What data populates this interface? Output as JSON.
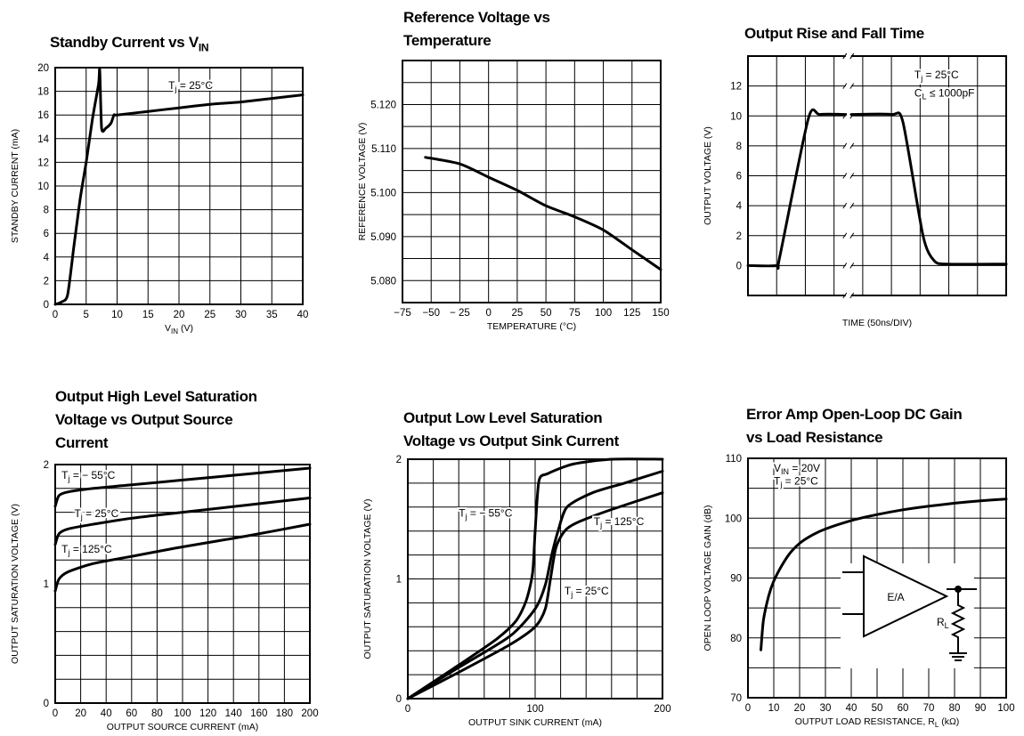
{
  "chart_data": [
    {
      "id": "c1",
      "type": "line",
      "title": "Standby Current vs V_IN",
      "title_lines": [
        {
          "main": "Standby Current vs V",
          "sub": "IN"
        }
      ],
      "xlabel": {
        "main": "V",
        "sub": "IN",
        "post": " (V)"
      },
      "ylabel": "STANDBY CURRENT (mA)",
      "xlim": [
        0,
        40
      ],
      "ylim": [
        0,
        20
      ],
      "xticks": [
        0,
        5,
        10,
        15,
        20,
        25,
        30,
        35,
        40
      ],
      "yticks": [
        0,
        2,
        4,
        6,
        8,
        10,
        12,
        14,
        16,
        18,
        20
      ],
      "xgrid": [
        0,
        5,
        10,
        15,
        20,
        25,
        30,
        35,
        40
      ],
      "ygrid": [
        0,
        2,
        4,
        6,
        8,
        10,
        12,
        14,
        16,
        18,
        20
      ],
      "grid": true,
      "series": [
        {
          "x": [
            0,
            1,
            2,
            3,
            4,
            5,
            6,
            7,
            7.2,
            7.5,
            8.2,
            9,
            9.5,
            10,
            15,
            20,
            25,
            30,
            35,
            40
          ],
          "y": [
            0,
            0.2,
            0.8,
            4.8,
            8.8,
            12.0,
            15.6,
            18.6,
            19.8,
            14.9,
            14.9,
            15.3,
            16.0,
            16.0,
            16.3,
            16.6,
            16.9,
            17.1,
            17.4,
            17.7
          ]
        }
      ],
      "annotations": [
        {
          "label": [
            {
              "t": "T"
            },
            {
              "t": "j",
              "sub": true
            },
            {
              "t": " = 25°C"
            }
          ],
          "x": 18.3,
          "y": 18.2
        }
      ]
    },
    {
      "id": "c2",
      "type": "line",
      "title": "Reference Voltage vs Temperature",
      "title_lines": [
        {
          "main": "Reference Voltage vs"
        },
        {
          "main": "Temperature"
        }
      ],
      "xlabel": {
        "main": "TEMPERATURE (°C)"
      },
      "ylabel": "REFERENCE VOLTAGE (V)",
      "xlim": [
        -75,
        150
      ],
      "ylim": [
        5.075,
        5.13
      ],
      "xticks": [
        -75,
        -50,
        -25,
        0,
        25,
        50,
        75,
        100,
        125,
        150
      ],
      "xtick_labels": [
        "−75",
        "−50",
        "− 25",
        "0",
        "25",
        "50",
        "75",
        "100",
        "125",
        "150"
      ],
      "yticks": [
        5.08,
        5.09,
        5.1,
        5.11,
        5.12
      ],
      "ytick_labels": [
        "5.080",
        "5.090",
        "5.100",
        "5.110",
        "5.120"
      ],
      "xgrid": [
        -75,
        -50,
        -25,
        0,
        25,
        50,
        75,
        100,
        125,
        150
      ],
      "ygrid": [
        5.075,
        5.08,
        5.085,
        5.09,
        5.095,
        5.1,
        5.105,
        5.11,
        5.115,
        5.12,
        5.125,
        5.13
      ],
      "grid": true,
      "series": [
        {
          "x": [
            -55,
            -25,
            0,
            25,
            50,
            75,
            100,
            125,
            150
          ],
          "y": [
            5.108,
            5.1065,
            5.1035,
            5.1005,
            5.097,
            5.0945,
            5.0915,
            5.087,
            5.0825
          ]
        }
      ],
      "annotations": []
    },
    {
      "id": "c3",
      "type": "line",
      "title": "Output Rise and Fall Time",
      "title_lines": [
        {
          "main": "Output Rise and Fall Time"
        }
      ],
      "xlabel": {
        "main": "TIME (50ns/DIV)"
      },
      "ylabel": "OUTPUT VOLTAGE (V)",
      "xlim": [
        0,
        9
      ],
      "ylim": [
        -2,
        14
      ],
      "xticks": [],
      "yticks": [
        0,
        2,
        4,
        6,
        8,
        10,
        12
      ],
      "xgrid": [
        0,
        1,
        2,
        3,
        4,
        5,
        6,
        7,
        8,
        9
      ],
      "ygrid": [
        -2,
        0,
        2,
        4,
        6,
        8,
        10,
        12,
        14
      ],
      "grid": true,
      "break_x": 3.5,
      "series": [
        {
          "x": [
            0,
            1.0,
            1.1,
            2.1,
            2.5,
            3.4
          ],
          "y": [
            0,
            0,
            0.5,
            9.8,
            10.1,
            10.1
          ]
        },
        {
          "x": [
            3.6,
            5.0,
            5.4,
            6.1,
            6.5,
            7.0,
            9.0
          ],
          "y": [
            10.1,
            10.1,
            9.6,
            2.0,
            0.3,
            0.1,
            0.1
          ]
        }
      ],
      "annotations": [
        {
          "label": [
            {
              "t": "T"
            },
            {
              "t": "j",
              "sub": true
            },
            {
              "t": " = 25°C"
            }
          ],
          "x": 5.8,
          "y": 12.5
        },
        {
          "label": [
            {
              "t": "C"
            },
            {
              "t": "L",
              "sub": true
            },
            {
              "t": " ≤ 1000pF"
            }
          ],
          "x": 5.8,
          "y": 11.3
        }
      ]
    },
    {
      "id": "c4",
      "type": "line",
      "title": "Output High Level Saturation Voltage vs Output Source Current",
      "title_lines": [
        {
          "main": "Output High Level Saturation"
        },
        {
          "main": "Voltage vs Output Source"
        },
        {
          "main": "Current"
        }
      ],
      "xlabel": {
        "main": "OUTPUT SOURCE CURRENT (mA)"
      },
      "ylabel": "OUTPUT SATURATION VOLTAGE (V)",
      "xlim": [
        0,
        200
      ],
      "ylim": [
        0,
        2
      ],
      "xticks": [
        0,
        20,
        40,
        60,
        80,
        100,
        120,
        140,
        160,
        180,
        200
      ],
      "yticks": [
        0,
        1,
        2
      ],
      "xgrid": [
        0,
        20,
        40,
        60,
        80,
        100,
        120,
        140,
        160,
        180,
        200
      ],
      "ygrid": [
        0,
        0.2,
        0.4,
        0.6,
        0.8,
        1.0,
        1.2,
        1.4,
        1.6,
        1.8,
        2.0
      ],
      "grid": true,
      "series": [
        {
          "name": "T_j = −55°C",
          "x": [
            0,
            3,
            10,
            30,
            60,
            100,
            150,
            200
          ],
          "y": [
            1.65,
            1.74,
            1.77,
            1.8,
            1.83,
            1.87,
            1.92,
            1.97
          ]
        },
        {
          "name": "T_j = 25°C",
          "x": [
            0,
            3,
            10,
            30,
            60,
            100,
            150,
            200
          ],
          "y": [
            1.33,
            1.42,
            1.46,
            1.5,
            1.55,
            1.6,
            1.66,
            1.72
          ]
        },
        {
          "name": "T_j = 125°C",
          "x": [
            0,
            3,
            10,
            30,
            60,
            100,
            150,
            200
          ],
          "y": [
            0.94,
            1.04,
            1.1,
            1.17,
            1.23,
            1.31,
            1.4,
            1.5
          ]
        }
      ],
      "annotations": [
        {
          "label": [
            {
              "t": "T"
            },
            {
              "t": "j",
              "sub": true
            },
            {
              "t": " = − 55°C"
            }
          ],
          "x": 5,
          "y": 1.88
        },
        {
          "label": [
            {
              "t": "T"
            },
            {
              "t": "j",
              "sub": true
            },
            {
              "t": " = 25°C"
            }
          ],
          "x": 15,
          "y": 1.56
        },
        {
          "label": [
            {
              "t": "T"
            },
            {
              "t": "j",
              "sub": true
            },
            {
              "t": " = 125°C"
            }
          ],
          "x": 5,
          "y": 1.26
        }
      ]
    },
    {
      "id": "c5",
      "type": "line",
      "title": "Output Low Level Saturation Voltage vs Output Sink Current",
      "title_lines": [
        {
          "main": "Output Low Level Saturation"
        },
        {
          "main": "Voltage vs Output Sink Current"
        }
      ],
      "xlabel": {
        "main": "OUTPUT SINK CURRENT (mA)"
      },
      "ylabel": "OUTPUT SATURATION VOLTAGE (V)",
      "xlim": [
        0,
        200
      ],
      "ylim": [
        0,
        2
      ],
      "xticks": [
        0,
        100,
        200
      ],
      "yticks": [
        0,
        1,
        2
      ],
      "xgrid": [
        0,
        20,
        40,
        60,
        80,
        100,
        120,
        140,
        160,
        180,
        200
      ],
      "ygrid": [
        0,
        0.2,
        0.4,
        0.6,
        0.8,
        1.0,
        1.2,
        1.4,
        1.6,
        1.8,
        2.0
      ],
      "grid": true,
      "series": [
        {
          "name": "T_j = −55°C",
          "x": [
            0,
            40,
            70,
            85,
            93,
            98,
            100,
            103,
            110,
            130,
            160,
            200
          ],
          "y": [
            0,
            0.28,
            0.5,
            0.65,
            0.82,
            1.05,
            1.4,
            1.82,
            1.88,
            1.96,
            2.0,
            2.0
          ]
        },
        {
          "name": "T_j = 25°C",
          "x": [
            0,
            40,
            80,
            100,
            108,
            113,
            118,
            125,
            145,
            170,
            200
          ],
          "y": [
            0,
            0.26,
            0.52,
            0.75,
            0.95,
            1.2,
            1.4,
            1.6,
            1.72,
            1.8,
            1.9
          ]
        },
        {
          "name": "T_j = 125°C",
          "x": [
            0,
            40,
            80,
            100,
            108,
            112,
            116,
            120,
            125,
            135,
            160,
            200
          ],
          "y": [
            0,
            0.22,
            0.45,
            0.6,
            0.75,
            1.0,
            1.25,
            1.35,
            1.42,
            1.48,
            1.58,
            1.72
          ]
        }
      ],
      "annotations": [
        {
          "label": [
            {
              "t": "T"
            },
            {
              "t": "j",
              "sub": true
            },
            {
              "t": " = − 55°C"
            }
          ],
          "x": 40,
          "y": 1.52
        },
        {
          "label": [
            {
              "t": "T"
            },
            {
              "t": "j",
              "sub": true
            },
            {
              "t": " = 125°C"
            }
          ],
          "x": 146,
          "y": 1.45
        },
        {
          "label": [
            {
              "t": "T"
            },
            {
              "t": "j",
              "sub": true
            },
            {
              "t": " = 25°C"
            }
          ],
          "x": 123,
          "y": 0.87
        }
      ]
    },
    {
      "id": "c6",
      "type": "line",
      "title": "Error Amp Open-Loop DC Gain vs Load Resistance",
      "title_lines": [
        {
          "main": "Error Amp Open-Loop DC Gain"
        },
        {
          "main": "vs Load Resistance"
        }
      ],
      "xlabel": {
        "main": "OUTPUT LOAD RESISTANCE, R",
        "sub": "L",
        "post": " (kΩ)"
      },
      "ylabel": "OPEN LOOP VOLTAGE GAIN (dB)",
      "xlim": [
        0,
        100
      ],
      "ylim": [
        70,
        110
      ],
      "xticks": [
        0,
        10,
        20,
        30,
        40,
        50,
        60,
        70,
        80,
        90,
        100
      ],
      "yticks": [
        70,
        80,
        90,
        100,
        110
      ],
      "xgrid": [
        0,
        10,
        20,
        30,
        40,
        50,
        60,
        70,
        80,
        90,
        100
      ],
      "ygrid": [
        70,
        75,
        80,
        85,
        90,
        95,
        100,
        105,
        110
      ],
      "grid": true,
      "series": [
        {
          "x": [
            5,
            6,
            8,
            10,
            13,
            16,
            20,
            25,
            30,
            40,
            50,
            60,
            70,
            80,
            90,
            100
          ],
          "y": [
            78,
            83,
            87,
            89.5,
            92,
            94,
            95.8,
            97.2,
            98.2,
            99.6,
            100.6,
            101.4,
            102,
            102.5,
            102.9,
            103.2
          ]
        }
      ],
      "annotations": [
        {
          "label": [
            {
              "t": "V"
            },
            {
              "t": "IN",
              "sub": true
            },
            {
              "t": " = 20V"
            }
          ],
          "x": 10,
          "y": 107.8
        },
        {
          "label": [
            {
              "t": "T"
            },
            {
              "t": "j",
              "sub": true
            },
            {
              "t": " = 25°C"
            }
          ],
          "x": 10,
          "y": 105.6
        }
      ],
      "inset": {
        "amp_label": "E/A",
        "res_label": "R",
        "res_sub": "L"
      }
    }
  ]
}
